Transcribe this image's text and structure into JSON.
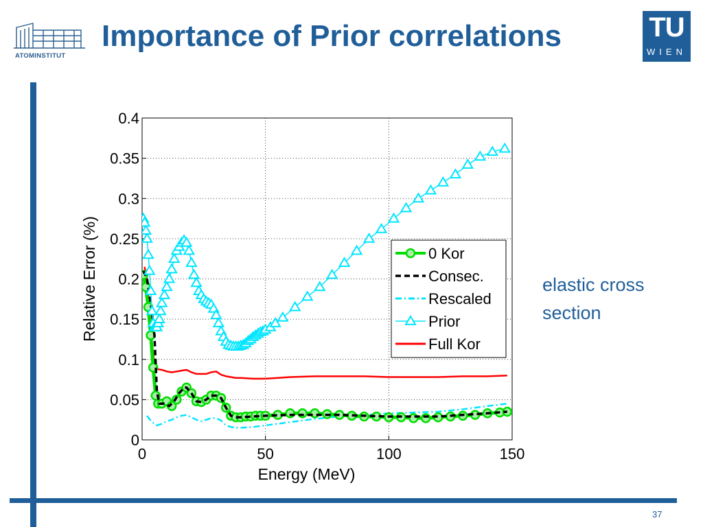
{
  "slide": {
    "title": "Importance of Prior correlations",
    "side_note": "elastic cross section",
    "page_number": "37",
    "left_logo_text": "ATOMINSTITUT",
    "tu_logo_top": "TU",
    "tu_logo_bottom": "WIEN",
    "accent_color": "#1f5e99"
  },
  "chart_data": {
    "type": "line",
    "xlabel": "Energy (MeV)",
    "ylabel": "Relative Error (%)",
    "xlim": [
      0,
      150
    ],
    "ylim": [
      0,
      0.4
    ],
    "xticks": [
      0,
      50,
      100,
      150
    ],
    "yticks": [
      0,
      0.05,
      0.1,
      0.15,
      0.2,
      0.25,
      0.3,
      0.35,
      0.4
    ],
    "ytick_labels": [
      "0",
      "0.05",
      "0.1",
      "0.15",
      "0.2",
      "0.25",
      "0.3",
      "0.35",
      "0.4"
    ],
    "grid": true,
    "legend_position": "inside right",
    "series": [
      {
        "name": "0 Kor",
        "color": "#00dd00",
        "marker": "circle",
        "x": [
          0.5,
          1.5,
          2.5,
          3.5,
          4.5,
          5.5,
          6.5,
          8,
          10,
          12,
          14,
          16,
          18,
          20,
          22,
          24,
          26,
          28,
          30,
          32,
          34,
          36,
          38,
          40,
          42,
          44,
          46,
          48,
          50,
          55,
          60,
          65,
          70,
          75,
          80,
          85,
          90,
          95,
          100,
          105,
          110,
          115,
          120,
          125,
          130,
          135,
          140,
          145,
          148
        ],
        "y": [
          0.205,
          0.19,
          0.165,
          0.13,
          0.09,
          0.055,
          0.045,
          0.045,
          0.048,
          0.042,
          0.05,
          0.06,
          0.065,
          0.058,
          0.048,
          0.047,
          0.05,
          0.055,
          0.055,
          0.052,
          0.04,
          0.03,
          0.028,
          0.028,
          0.029,
          0.029,
          0.03,
          0.03,
          0.03,
          0.031,
          0.033,
          0.033,
          0.033,
          0.032,
          0.031,
          0.03,
          0.029,
          0.029,
          0.028,
          0.028,
          0.027,
          0.027,
          0.028,
          0.029,
          0.03,
          0.031,
          0.033,
          0.034,
          0.035
        ]
      },
      {
        "name": "Consec.",
        "color": "#000000",
        "style": "dashed",
        "x": [
          0.5,
          2,
          3.5,
          5,
          6,
          7,
          9,
          11,
          13,
          15,
          17,
          18,
          20,
          22,
          24,
          26,
          28,
          30,
          32,
          34,
          36,
          38,
          40,
          45,
          50,
          60,
          70,
          80,
          90,
          100,
          110,
          120,
          130,
          140,
          148
        ],
        "y": [
          0.21,
          0.2,
          0.17,
          0.13,
          0.06,
          0.045,
          0.045,
          0.042,
          0.048,
          0.058,
          0.065,
          0.065,
          0.058,
          0.048,
          0.047,
          0.05,
          0.055,
          0.055,
          0.052,
          0.04,
          0.03,
          0.028,
          0.028,
          0.029,
          0.03,
          0.031,
          0.031,
          0.031,
          0.03,
          0.029,
          0.029,
          0.029,
          0.031,
          0.033,
          0.035
        ]
      },
      {
        "name": "Rescaled",
        "color": "#00e5ff",
        "style": "dashdot",
        "x": [
          2,
          4,
          6,
          8,
          10,
          12,
          14,
          16,
          18,
          20,
          22,
          24,
          26,
          28,
          30,
          32,
          34,
          36,
          38,
          40,
          45,
          50,
          60,
          70,
          80,
          90,
          100,
          110,
          120,
          130,
          140,
          148
        ],
        "y": [
          0.03,
          0.022,
          0.018,
          0.02,
          0.023,
          0.025,
          0.028,
          0.03,
          0.031,
          0.028,
          0.025,
          0.023,
          0.025,
          0.027,
          0.027,
          0.024,
          0.018,
          0.016,
          0.015,
          0.015,
          0.016,
          0.018,
          0.022,
          0.026,
          0.029,
          0.031,
          0.033,
          0.034,
          0.035,
          0.038,
          0.042,
          0.045
        ]
      },
      {
        "name": "Prior",
        "color": "#00e5ff",
        "marker": "triangle",
        "x": [
          0.5,
          1,
          1.5,
          2,
          2.5,
          3,
          3.5,
          4,
          4.5,
          5,
          5.5,
          6,
          6.5,
          7,
          7.5,
          8,
          9,
          10,
          11,
          12,
          13,
          14,
          15,
          16,
          17,
          18,
          19,
          20,
          21,
          22,
          23,
          24,
          25,
          26,
          27,
          28,
          29,
          30,
          31,
          32,
          33,
          34,
          35,
          36,
          37,
          38,
          39,
          40,
          41,
          42,
          43,
          44,
          45,
          46,
          47,
          48,
          49,
          50,
          52,
          54,
          57,
          62,
          67,
          72,
          77,
          82,
          87,
          92,
          97,
          102,
          107,
          112,
          117,
          122,
          127,
          132,
          137,
          142,
          147
        ],
        "y": [
          0.275,
          0.27,
          0.26,
          0.25,
          0.23,
          0.21,
          0.185,
          0.16,
          0.145,
          0.14,
          0.14,
          0.14,
          0.145,
          0.15,
          0.16,
          0.17,
          0.18,
          0.19,
          0.2,
          0.212,
          0.225,
          0.235,
          0.24,
          0.245,
          0.248,
          0.245,
          0.235,
          0.22,
          0.205,
          0.195,
          0.185,
          0.18,
          0.175,
          0.172,
          0.17,
          0.168,
          0.163,
          0.155,
          0.145,
          0.135,
          0.128,
          0.122,
          0.118,
          0.117,
          0.116,
          0.116,
          0.116,
          0.117,
          0.118,
          0.12,
          0.123,
          0.125,
          0.128,
          0.13,
          0.132,
          0.134,
          0.135,
          0.137,
          0.14,
          0.145,
          0.152,
          0.165,
          0.178,
          0.19,
          0.205,
          0.22,
          0.235,
          0.25,
          0.262,
          0.275,
          0.288,
          0.3,
          0.31,
          0.32,
          0.33,
          0.342,
          0.352,
          0.358,
          0.362
        ]
      },
      {
        "name": "Full Kor",
        "color": "#ff0000",
        "style": "solid",
        "x": [
          1,
          2,
          3,
          4,
          5,
          6,
          8,
          10,
          12,
          14,
          16,
          18,
          20,
          22,
          24,
          26,
          28,
          30,
          32,
          34,
          36,
          38,
          40,
          45,
          50,
          55,
          60,
          70,
          80,
          90,
          100,
          110,
          120,
          130,
          140,
          148
        ],
        "y": [
          0.215,
          0.2,
          0.16,
          0.12,
          0.095,
          0.088,
          0.087,
          0.085,
          0.084,
          0.085,
          0.086,
          0.087,
          0.084,
          0.082,
          0.082,
          0.082,
          0.084,
          0.085,
          0.081,
          0.079,
          0.078,
          0.077,
          0.077,
          0.076,
          0.076,
          0.077,
          0.078,
          0.079,
          0.079,
          0.079,
          0.078,
          0.078,
          0.078,
          0.079,
          0.079,
          0.08
        ]
      }
    ]
  }
}
